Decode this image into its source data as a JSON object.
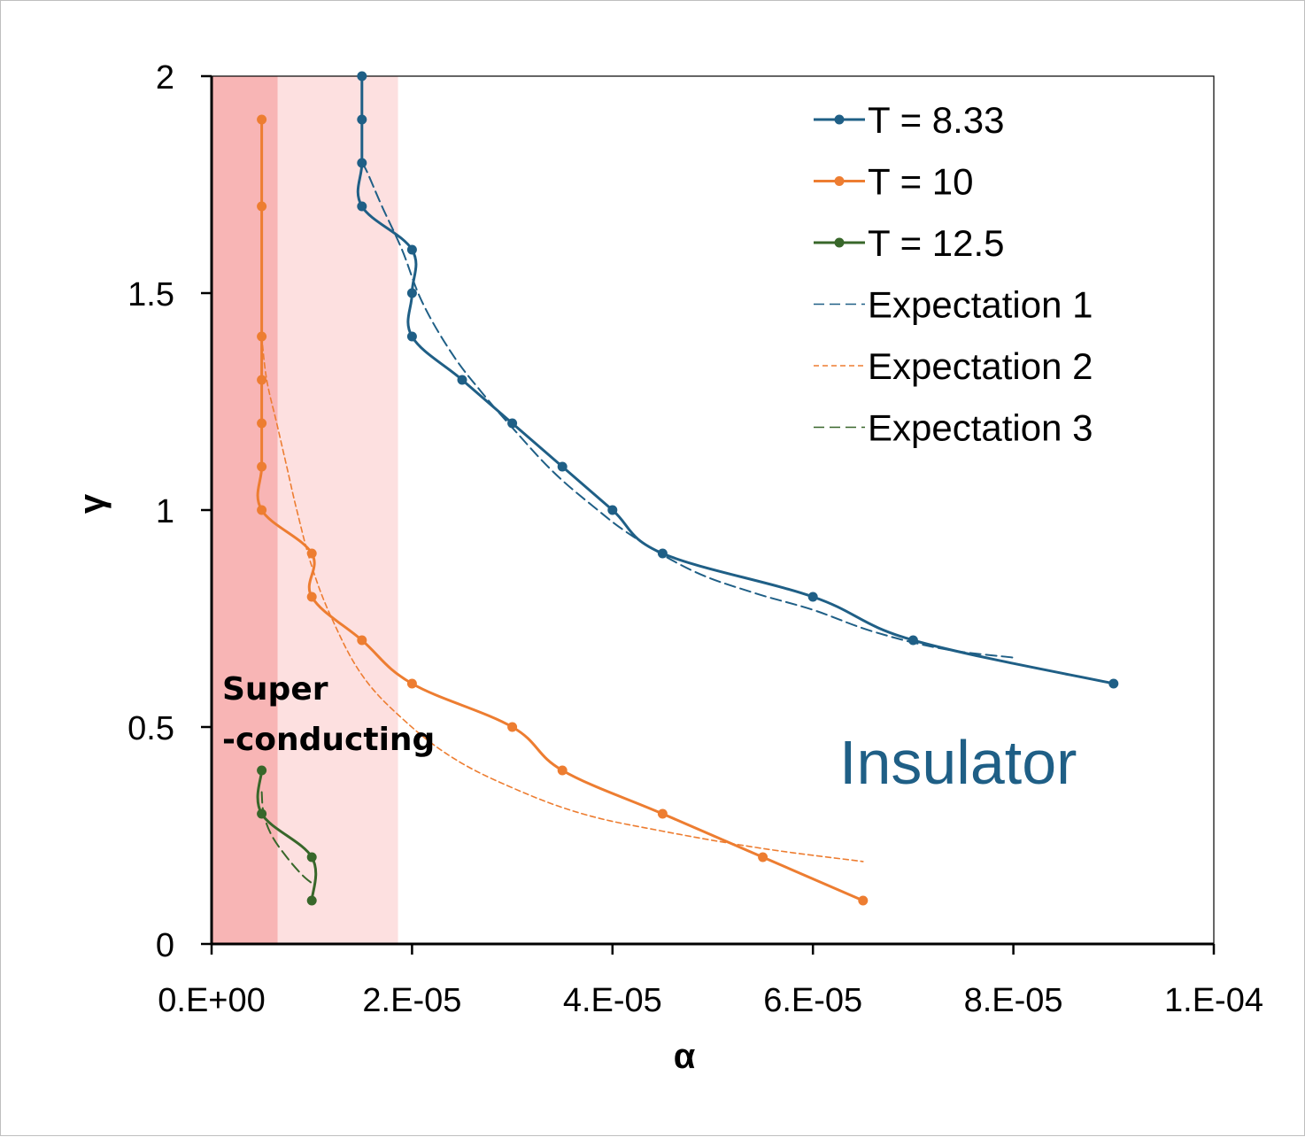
{
  "chart_data": {
    "type": "line",
    "title": "",
    "xlabel": "α",
    "ylabel": "γ",
    "xlim": [
      0,
      0.0001
    ],
    "ylim": [
      0,
      2
    ],
    "x_ticks": [
      "0.E+00",
      "2.E-05",
      "4.E-05",
      "6.E-05",
      "8.E-05",
      "1.E-04"
    ],
    "y_ticks": [
      "0",
      "0.5",
      "1",
      "1.5",
      "2"
    ],
    "x_tick_values": [
      0,
      2e-05,
      4e-05,
      6e-05,
      8e-05,
      0.0001
    ],
    "y_tick_values": [
      0,
      0.5,
      1,
      1.5,
      2
    ],
    "grid": false,
    "legend_position": "top-right",
    "series": [
      {
        "name": "T = 8.33",
        "color": "#1f5f86",
        "style": "solid-markers",
        "x": [
          1.5e-05,
          1.5e-05,
          1.5e-05,
          1.5e-05,
          2e-05,
          2e-05,
          2e-05,
          2.5e-05,
          3e-05,
          3.5e-05,
          4e-05,
          4.5e-05,
          6e-05,
          7e-05,
          9e-05
        ],
        "y": [
          2.0,
          1.9,
          1.8,
          1.7,
          1.6,
          1.5,
          1.4,
          1.3,
          1.2,
          1.1,
          1.0,
          0.9,
          0.8,
          0.7,
          0.6
        ]
      },
      {
        "name": "T = 10",
        "color": "#ed7d31",
        "style": "solid-markers",
        "x": [
          5e-06,
          5e-06,
          5e-06,
          5e-06,
          5e-06,
          5e-06,
          5e-06,
          1e-05,
          1e-05,
          1.5e-05,
          2e-05,
          3e-05,
          3.5e-05,
          4.5e-05,
          5.5e-05,
          6.5e-05
        ],
        "y": [
          1.9,
          1.7,
          1.4,
          1.3,
          1.2,
          1.1,
          1.0,
          0.9,
          0.8,
          0.7,
          0.6,
          0.5,
          0.4,
          0.3,
          0.2,
          0.1
        ]
      },
      {
        "name": "T = 12.5",
        "color": "#38672a",
        "style": "solid-markers",
        "x": [
          5e-06,
          5e-06,
          1e-05,
          1e-05
        ],
        "y": [
          0.4,
          0.3,
          0.2,
          0.1
        ]
      },
      {
        "name": "Expectation 1",
        "color": "#1f5f86",
        "style": "dashed",
        "x": [
          1.5e-05,
          1.55e-05,
          1.7e-05,
          1.9e-05,
          2.1e-05,
          2.4e-05,
          2.7e-05,
          3e-05,
          3.4e-05,
          3.8e-05,
          4.2e-05,
          4.8e-05,
          5.4e-05,
          6e-05,
          6.6e-05,
          7.3e-05,
          8e-05
        ],
        "y": [
          1.8,
          1.78,
          1.7,
          1.6,
          1.48,
          1.36,
          1.27,
          1.19,
          1.09,
          1.01,
          0.94,
          0.86,
          0.81,
          0.77,
          0.72,
          0.68,
          0.66
        ]
      },
      {
        "name": "Expectation 2",
        "color": "#ed7d31",
        "style": "dashed-thin",
        "x": [
          5e-06,
          5.5e-06,
          6.5e-06,
          7.5e-06,
          8.5e-06,
          1e-05,
          1.2e-05,
          1.5e-05,
          1.9e-05,
          2.4e-05,
          3e-05,
          3.7e-05,
          4.5e-05,
          5.5e-05,
          6.5e-05
        ],
        "y": [
          1.4,
          1.3,
          1.2,
          1.1,
          1.0,
          0.87,
          0.75,
          0.62,
          0.52,
          0.43,
          0.36,
          0.3,
          0.26,
          0.22,
          0.19
        ]
      },
      {
        "name": "Expectation 3",
        "color": "#38672a",
        "style": "dashed",
        "x": [
          5e-06,
          5.2e-06,
          6e-06,
          7.5e-06,
          9e-06,
          1e-05
        ],
        "y": [
          0.35,
          0.3,
          0.25,
          0.2,
          0.16,
          0.14
        ]
      }
    ],
    "regions": [
      {
        "label": "Super\n-conducting",
        "x_range": [
          0,
          6.6e-06
        ],
        "color": "#f8b5b5"
      },
      {
        "label": "",
        "x_range": [
          6.6e-06,
          1.86e-05
        ],
        "color": "#fde0e0"
      },
      {
        "label": "Insulator",
        "color": "#1f5f86"
      }
    ],
    "annotations": [
      "Super",
      "-conducting",
      "Insulator"
    ]
  }
}
